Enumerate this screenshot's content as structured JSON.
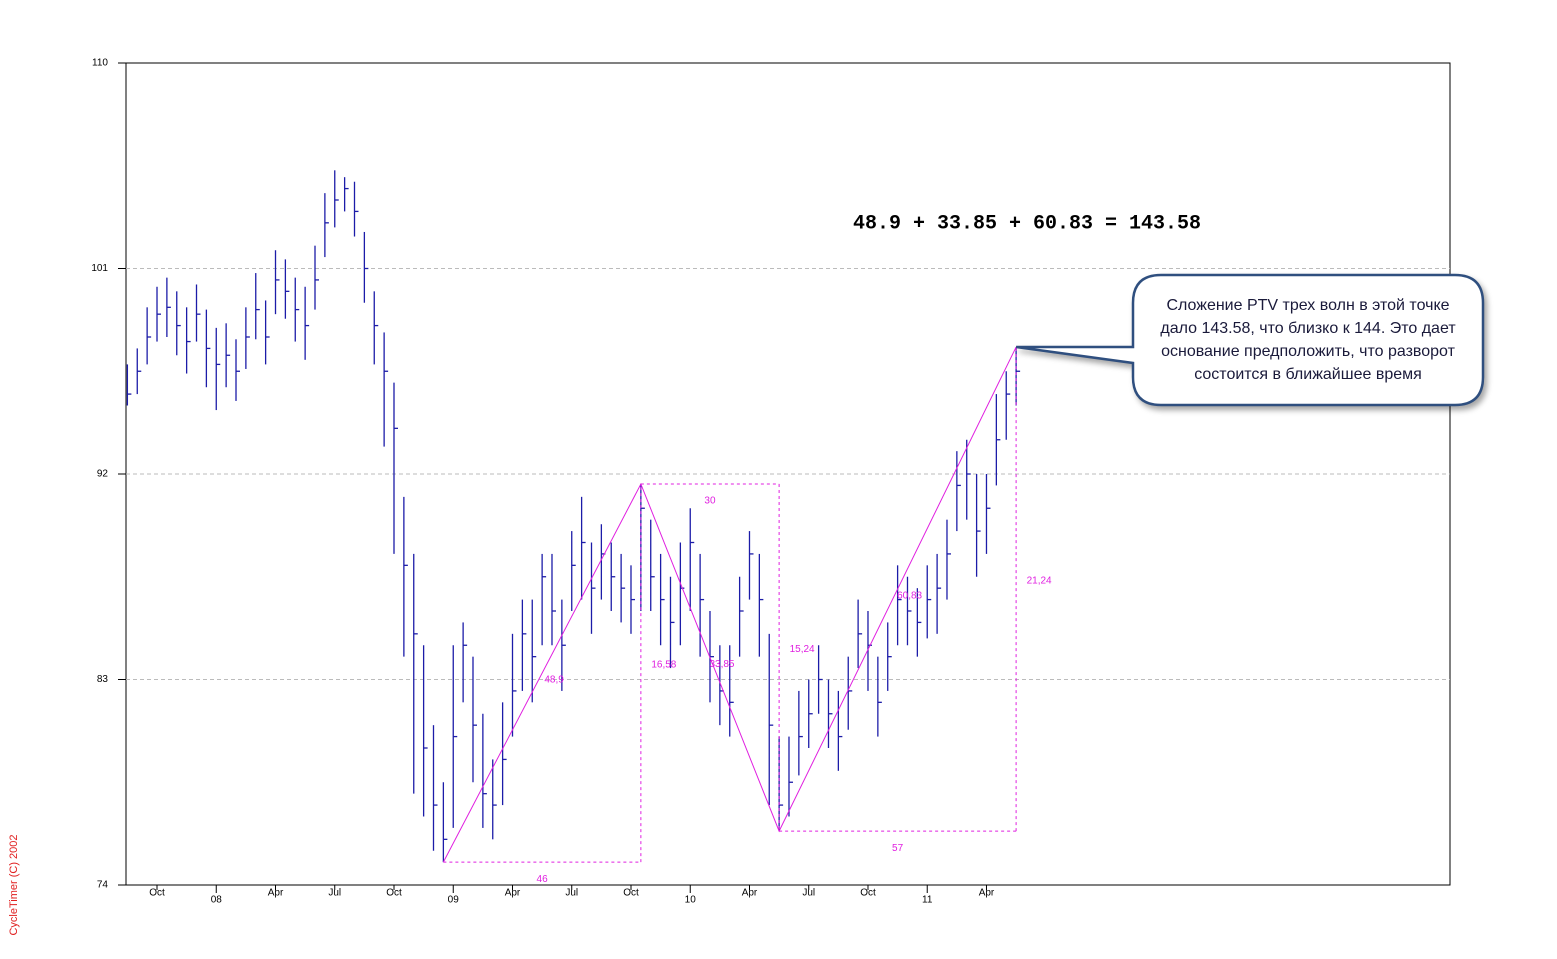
{
  "chart_data": {
    "type": "ohlc",
    "color": "#1c1ca8",
    "accent_color": "#e020e0",
    "grid": true,
    "ylim": [
      74,
      110
    ],
    "yticks": [
      74,
      83,
      92,
      101,
      110
    ],
    "xlim": [
      -1.57,
      65.47
    ],
    "xticks": [
      {
        "value": 0,
        "label": "Oct"
      },
      {
        "value": 6,
        "label": "Apr"
      },
      {
        "value": 9,
        "label": "Jul"
      },
      {
        "value": 12,
        "label": "Oct"
      },
      {
        "value": 18,
        "label": "Apr"
      },
      {
        "value": 21,
        "label": "Jul"
      },
      {
        "value": 24,
        "label": "Oct"
      },
      {
        "value": 30,
        "label": "Apr"
      },
      {
        "value": 33,
        "label": "Jul"
      },
      {
        "value": 36,
        "label": "Oct"
      },
      {
        "value": 42,
        "label": "Apr"
      }
    ],
    "year_ticks": [
      {
        "value": 3,
        "label": "08"
      },
      {
        "value": 15,
        "label": "09"
      },
      {
        "value": 27,
        "label": "10"
      },
      {
        "value": 39,
        "label": "11"
      }
    ],
    "x": [
      -1.5,
      -1,
      -0.5,
      0,
      0.5,
      1,
      1.5,
      2,
      2.5,
      3,
      3.5,
      4,
      4.5,
      5,
      5.5,
      6,
      6.5,
      7,
      7.5,
      8,
      8.5,
      9,
      9.5,
      10,
      10.5,
      11,
      11.5,
      12,
      12.5,
      13,
      13.5,
      14,
      14.5,
      15,
      15.5,
      16,
      16.5,
      17,
      17.5,
      18,
      18.5,
      19,
      19.5,
      20,
      20.5,
      21,
      21.5,
      22,
      22.5,
      23,
      23.5,
      24,
      24.5,
      25,
      25.5,
      26,
      26.5,
      27,
      27.5,
      28,
      28.5,
      29,
      29.5,
      30,
      30.5,
      31,
      31.5,
      32,
      32.5,
      33,
      33.5,
      34,
      34.5,
      35,
      35.5,
      36,
      36.5,
      37,
      37.5,
      38,
      38.5,
      39,
      39.5,
      40,
      40.5,
      41,
      41.5,
      42,
      42.5,
      43,
      43.5
    ],
    "high": [
      96.8,
      97.5,
      99.3,
      100.2,
      100.6,
      100.0,
      99.3,
      100.3,
      99.2,
      98.4,
      98.6,
      97.9,
      99.3,
      100.8,
      99.6,
      101.8,
      101.4,
      100.6,
      100.2,
      102.0,
      104.3,
      105.3,
      105.0,
      104.8,
      102.6,
      100.0,
      98.2,
      96.0,
      91.0,
      88.5,
      84.5,
      81.0,
      78.5,
      84.5,
      85.5,
      84.0,
      81.5,
      79.5,
      82.0,
      85.0,
      86.5,
      86.5,
      88.5,
      88.5,
      86.5,
      89.5,
      91.0,
      89.0,
      89.8,
      89.0,
      88.5,
      88.0,
      91.56,
      90.0,
      88.5,
      87.5,
      89.0,
      90.5,
      88.5,
      86.0,
      84.5,
      84.5,
      87.5,
      89.5,
      88.5,
      85.0,
      80.5,
      80.5,
      82.5,
      83.0,
      84.5,
      83.0,
      82.5,
      84.0,
      86.5,
      86.0,
      84.0,
      85.5,
      88.0,
      87.5,
      87.0,
      88.0,
      88.5,
      90.0,
      93.0,
      93.5,
      92.0,
      92.0,
      95.5,
      96.5,
      97.56
    ],
    "low": [
      95.0,
      95.5,
      96.8,
      97.8,
      98.0,
      97.2,
      96.4,
      97.8,
      95.8,
      94.8,
      95.8,
      95.2,
      96.6,
      97.9,
      96.8,
      99.0,
      98.8,
      97.8,
      97.0,
      99.2,
      101.5,
      102.8,
      103.5,
      102.4,
      99.5,
      96.8,
      93.2,
      88.5,
      84.0,
      78.0,
      77.0,
      75.5,
      75.0,
      76.5,
      82.0,
      78.5,
      76.5,
      76.0,
      77.5,
      80.5,
      82.5,
      82.0,
      84.5,
      84.5,
      82.5,
      86.0,
      86.5,
      85.0,
      86.5,
      86.0,
      85.5,
      85.0,
      86.0,
      86.0,
      84.5,
      83.5,
      84.5,
      86.0,
      84.0,
      82.0,
      81.0,
      80.5,
      84.0,
      86.5,
      84.0,
      77.5,
      76.36,
      77.0,
      78.8,
      80.0,
      81.5,
      80.0,
      79.0,
      80.8,
      83.5,
      82.5,
      80.5,
      82.5,
      84.5,
      84.5,
      84.0,
      84.8,
      85.0,
      86.5,
      89.5,
      90.0,
      87.5,
      88.5,
      91.5,
      93.5,
      95.0
    ],
    "close": [
      95.5,
      96.5,
      98.0,
      99.0,
      99.3,
      98.5,
      97.8,
      99.0,
      97.5,
      96.8,
      97.2,
      96.5,
      98.0,
      99.2,
      98.0,
      100.5,
      100.0,
      99.2,
      98.5,
      100.5,
      103.0,
      104.0,
      104.5,
      103.5,
      101.0,
      98.5,
      96.5,
      94.0,
      88.0,
      85.0,
      80.0,
      77.5,
      76.0,
      80.5,
      84.5,
      81.0,
      78.0,
      77.5,
      79.5,
      82.5,
      85.0,
      84.0,
      87.5,
      86.0,
      84.5,
      88.0,
      89.0,
      87.0,
      88.5,
      87.5,
      87.0,
      86.5,
      90.5,
      87.5,
      86.5,
      85.5,
      87.0,
      89.0,
      86.5,
      84.0,
      82.5,
      82.0,
      86.0,
      88.5,
      86.5,
      81.0,
      77.5,
      78.5,
      80.5,
      81.5,
      83.0,
      81.5,
      80.5,
      82.5,
      85.0,
      84.5,
      82.0,
      84.0,
      86.5,
      86.0,
      85.5,
      86.5,
      87.0,
      88.5,
      91.5,
      92.0,
      89.5,
      90.5,
      93.5,
      95.5,
      96.5
    ],
    "wave": {
      "x": [
        14.5,
        24.5,
        31.5,
        43.5
      ],
      "y": [
        75.0,
        91.56,
        76.36,
        97.56
      ]
    },
    "leg_labels": [
      "48,9",
      "33,85",
      "60,83"
    ],
    "time_labels": [
      "46",
      "30",
      "57"
    ],
    "price_labels": [
      "16,58",
      "15,24",
      "21,24"
    ],
    "formula": "48.9 + 33.85 + 60.83 = 143.58",
    "callout": [
      "Сложение PTV трех волн в этой точке",
      "дало 143.58, что близко к 144. Это дает",
      "основание предположить, что разворот",
      "состоится в ближайшее время"
    ],
    "watermark": "CycleTimer (C) 2002"
  }
}
